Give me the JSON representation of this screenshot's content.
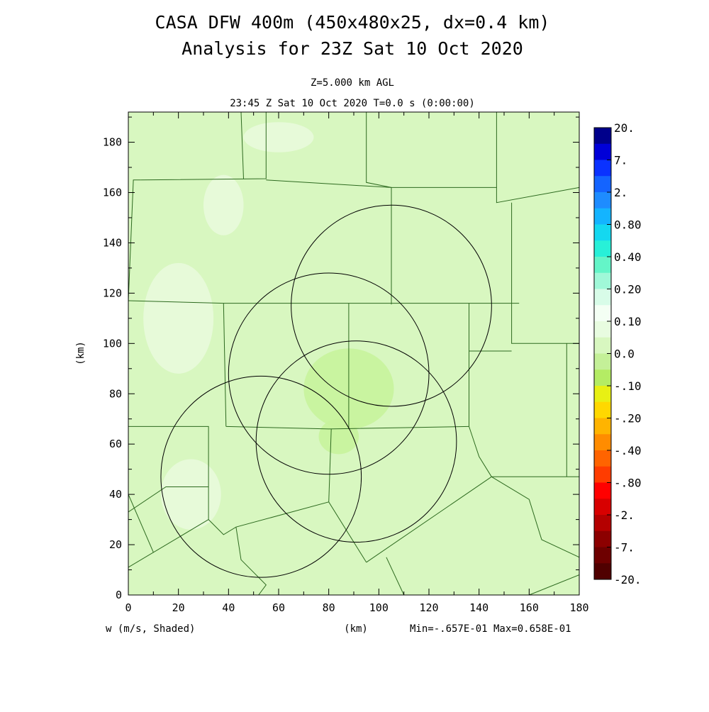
{
  "chart_data": {
    "type": "heatmap",
    "title_lines": [
      "CASA DFW 400m (450x480x25, dx=0.4 km)",
      "Analysis for 23Z Sat 10 Oct 2020"
    ],
    "subtitle_lines": [
      "Z=5.000 km AGL",
      "23:45 Z Sat 10 Oct 2020    T=0.0 s (0:00:00)"
    ],
    "xlabel": "(km)",
    "ylabel": "(km)",
    "xlim": [
      0,
      180
    ],
    "ylim": [
      0,
      192
    ],
    "xticks": [
      "0",
      "20",
      "40",
      "60",
      "80",
      "100",
      "120",
      "140",
      "160",
      "180"
    ],
    "yticks": [
      "0",
      "20",
      "40",
      "60",
      "80",
      "100",
      "120",
      "140",
      "160",
      "180"
    ],
    "field_label": "w (m/s, Shaded)",
    "min_max_label": "Min=-.657E-01 Max=0.658E-01",
    "field_min": -0.0657,
    "field_max": 0.0658,
    "background_color": "#d8f7c0",
    "colorbar": {
      "labels": [
        "20.",
        "7.",
        "2.",
        "0.80",
        "0.40",
        "0.20",
        "0.10",
        "0.0",
        "-.10",
        "-.20",
        "-.40",
        "-.80",
        "-2.",
        "-7.",
        "-20."
      ],
      "colors": [
        "#00008b",
        "#0000d8",
        "#0a32ff",
        "#1464ff",
        "#1e8cff",
        "#14b4ff",
        "#14d8f0",
        "#28f0d8",
        "#64f5c8",
        "#a0f8d8",
        "#d8fce8",
        "#f4fff4",
        "#e8fce0",
        "#d8f7c0",
        "#c4f098",
        "#b4ec64",
        "#e8f014",
        "#ffd800",
        "#ffb400",
        "#ff8c00",
        "#ff6400",
        "#ff3c00",
        "#ff0000",
        "#d80000",
        "#b40000",
        "#8c0000",
        "#6e0000",
        "#500000"
      ]
    },
    "radar_rings_km": [
      {
        "x": 105,
        "y": 115,
        "r": 40
      },
      {
        "x": 80,
        "y": 88,
        "r": 40
      },
      {
        "x": 91,
        "y": 61,
        "r": 40
      },
      {
        "x": 53,
        "y": 47,
        "r": 40
      }
    ],
    "region_patches": [
      {
        "x": 88,
        "y": 82,
        "rx": 18,
        "ry": 16,
        "value": -0.05
      },
      {
        "x": 84,
        "y": 63,
        "rx": 8,
        "ry": 7,
        "value": -0.05
      },
      {
        "x": 20,
        "y": 110,
        "rx": 14,
        "ry": 22,
        "value": 0.02
      },
      {
        "x": 38,
        "y": 155,
        "rx": 8,
        "ry": 12,
        "value": 0.02
      },
      {
        "x": 60,
        "y": 182,
        "rx": 14,
        "ry": 6,
        "value": 0.02
      },
      {
        "x": 25,
        "y": 40,
        "rx": 12,
        "ry": 14,
        "value": 0.02
      }
    ],
    "county_lines_km": [
      [
        [
          0,
          117
        ],
        [
          2,
          165
        ],
        [
          5,
          165
        ]
      ],
      [
        [
          5,
          165
        ],
        [
          55,
          165.5
        ],
        [
          55,
          192
        ]
      ],
      [
        [
          46,
          165.5
        ],
        [
          45,
          192
        ]
      ],
      [
        [
          0,
          117
        ],
        [
          38,
          116
        ],
        [
          118,
          116
        ],
        [
          156,
          116
        ]
      ],
      [
        [
          55,
          165
        ],
        [
          105,
          162
        ]
      ],
      [
        [
          105,
          162
        ],
        [
          105,
          115.5
        ]
      ],
      [
        [
          95,
          192
        ],
        [
          95,
          164
        ],
        [
          105,
          162
        ]
      ],
      [
        [
          105,
          162
        ],
        [
          147,
          162
        ],
        [
          147,
          192
        ]
      ],
      [
        [
          147,
          162
        ],
        [
          147,
          156
        ],
        [
          180,
          162
        ]
      ],
      [
        [
          153,
          156
        ],
        [
          153,
          100
        ],
        [
          180,
          100
        ]
      ],
      [
        [
          38,
          116
        ],
        [
          39,
          67
        ]
      ],
      [
        [
          39,
          67
        ],
        [
          80,
          66
        ],
        [
          136,
          67
        ]
      ],
      [
        [
          88,
          116
        ],
        [
          88,
          66
        ]
      ],
      [
        [
          136,
          116
        ],
        [
          136,
          67
        ]
      ],
      [
        [
          136,
          97
        ],
        [
          153,
          97
        ]
      ],
      [
        [
          0,
          67
        ],
        [
          32,
          67
        ],
        [
          32,
          30
        ]
      ],
      [
        [
          32,
          30
        ],
        [
          0,
          11
        ]
      ],
      [
        [
          32,
          43
        ],
        [
          15,
          43
        ],
        [
          0,
          33
        ]
      ],
      [
        [
          0,
          40
        ],
        [
          10,
          17
        ]
      ],
      [
        [
          32,
          30
        ],
        [
          38,
          24
        ],
        [
          43,
          27
        ],
        [
          80,
          37
        ],
        [
          95,
          13
        ]
      ],
      [
        [
          80,
          37
        ],
        [
          81,
          66
        ]
      ],
      [
        [
          136,
          67
        ],
        [
          140,
          55
        ],
        [
          145,
          47
        ]
      ],
      [
        [
          145,
          47
        ],
        [
          95,
          13
        ]
      ],
      [
        [
          145,
          47
        ],
        [
          160,
          38
        ],
        [
          165,
          22
        ],
        [
          180,
          15
        ]
      ],
      [
        [
          145,
          47
        ],
        [
          180,
          47
        ]
      ],
      [
        [
          103,
          15
        ],
        [
          110,
          0
        ]
      ],
      [
        [
          160,
          0
        ],
        [
          180,
          8
        ]
      ],
      [
        [
          175,
          100
        ],
        [
          175,
          47
        ]
      ],
      [
        [
          43,
          27
        ],
        [
          45,
          14
        ],
        [
          55,
          4
        ],
        [
          52,
          0
        ]
      ]
    ]
  }
}
